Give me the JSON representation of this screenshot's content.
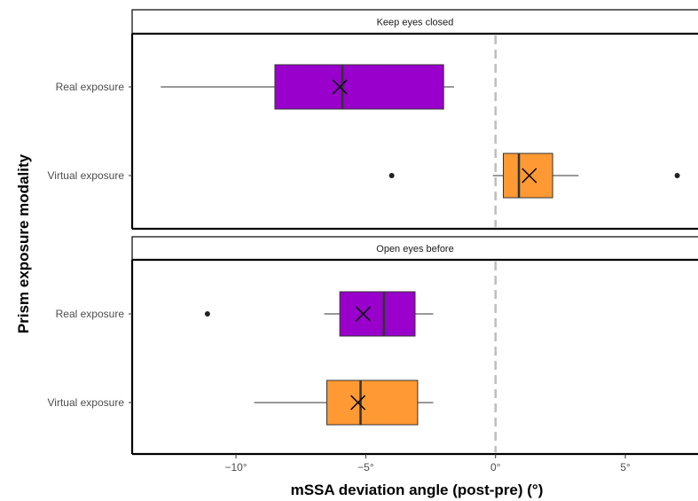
{
  "chart_data": {
    "type": "boxplot",
    "orientation": "horizontal",
    "xlabel": "mSSA deviation angle (post-pre) (°)",
    "ylabel": "Prism exposure modality",
    "xlim": [
      -14,
      7.8
    ],
    "x_ticks": [
      -10,
      -5,
      0,
      5
    ],
    "x_tick_labels": [
      "−10°",
      "−5°",
      "0°",
      "5°"
    ],
    "reference_line": {
      "x": 0,
      "style": "dashed",
      "color": "#bfbfbf"
    },
    "colors": {
      "Real exposure": "#9900cc",
      "Virtual exposure": "#ff9933"
    },
    "categories": [
      "Real exposure",
      "Virtual exposure"
    ],
    "panels": [
      {
        "title": "Keep eyes closed",
        "boxes": [
          {
            "category": "Real exposure",
            "whisker_low": -12.9,
            "q1": -8.5,
            "median": -5.9,
            "q3": -2.0,
            "whisker_high": -1.6,
            "mean": -6.0,
            "outliers": []
          },
          {
            "category": "Virtual exposure",
            "whisker_low": -0.1,
            "q1": 0.3,
            "median": 0.9,
            "q3": 2.2,
            "whisker_high": 3.2,
            "mean": 1.3,
            "outliers": [
              -4.0,
              7.0
            ]
          }
        ]
      },
      {
        "title": "Open eyes before",
        "boxes": [
          {
            "category": "Real exposure",
            "whisker_low": -6.6,
            "q1": -6.0,
            "median": -4.3,
            "q3": -3.1,
            "whisker_high": -2.4,
            "mean": -5.1,
            "outliers": [
              -11.1
            ]
          },
          {
            "category": "Virtual exposure",
            "whisker_low": -9.3,
            "q1": -6.5,
            "median": -5.2,
            "q3": -3.0,
            "whisker_high": -2.4,
            "mean": -5.3,
            "outliers": []
          }
        ]
      }
    ]
  }
}
